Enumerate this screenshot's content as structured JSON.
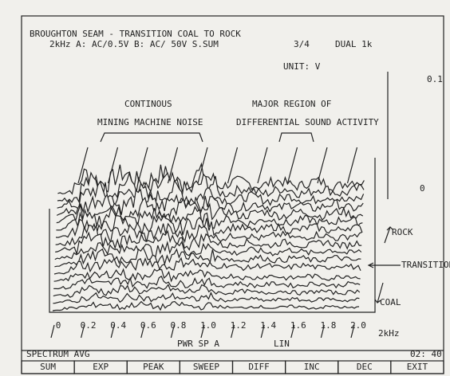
{
  "header": {
    "title": "BROUGHTON SEAM - TRANSITION COAL TO ROCK",
    "settings": "2kHz A: AC/0.5V B: AC/ 50V S.SUM",
    "count": "3/4",
    "mode": "DUAL 1k",
    "unit": "UNIT: V"
  },
  "scale": {
    "top": "0.1",
    "zero": "0"
  },
  "annotations": {
    "left_line1": "CONTINOUS",
    "left_line2": "MINING MACHINE NOISE",
    "right_line1": "MAJOR REGION OF",
    "right_line2": "DIFFERENTIAL SOUND ACTIVITY"
  },
  "side_labels": {
    "rock": "ROCK",
    "transition": "TRANSITION",
    "coal": "COAL"
  },
  "x_axis": {
    "ticks": [
      "0",
      "0.2",
      "0.4",
      "0.6",
      "0.8",
      "1.0",
      "1.2",
      "1.4",
      "1.6",
      "1.8",
      "2.0"
    ],
    "unit": "2kHz",
    "readout": "PWR SP A",
    "scale": "LIN"
  },
  "footer": {
    "left": "SPECTRUM AVG",
    "right": "02: 40"
  },
  "buttons": [
    "SUM",
    "EXP",
    "PEAK",
    "SWEEP",
    "DIFF",
    "INC",
    "DEC",
    "EXIT"
  ]
}
